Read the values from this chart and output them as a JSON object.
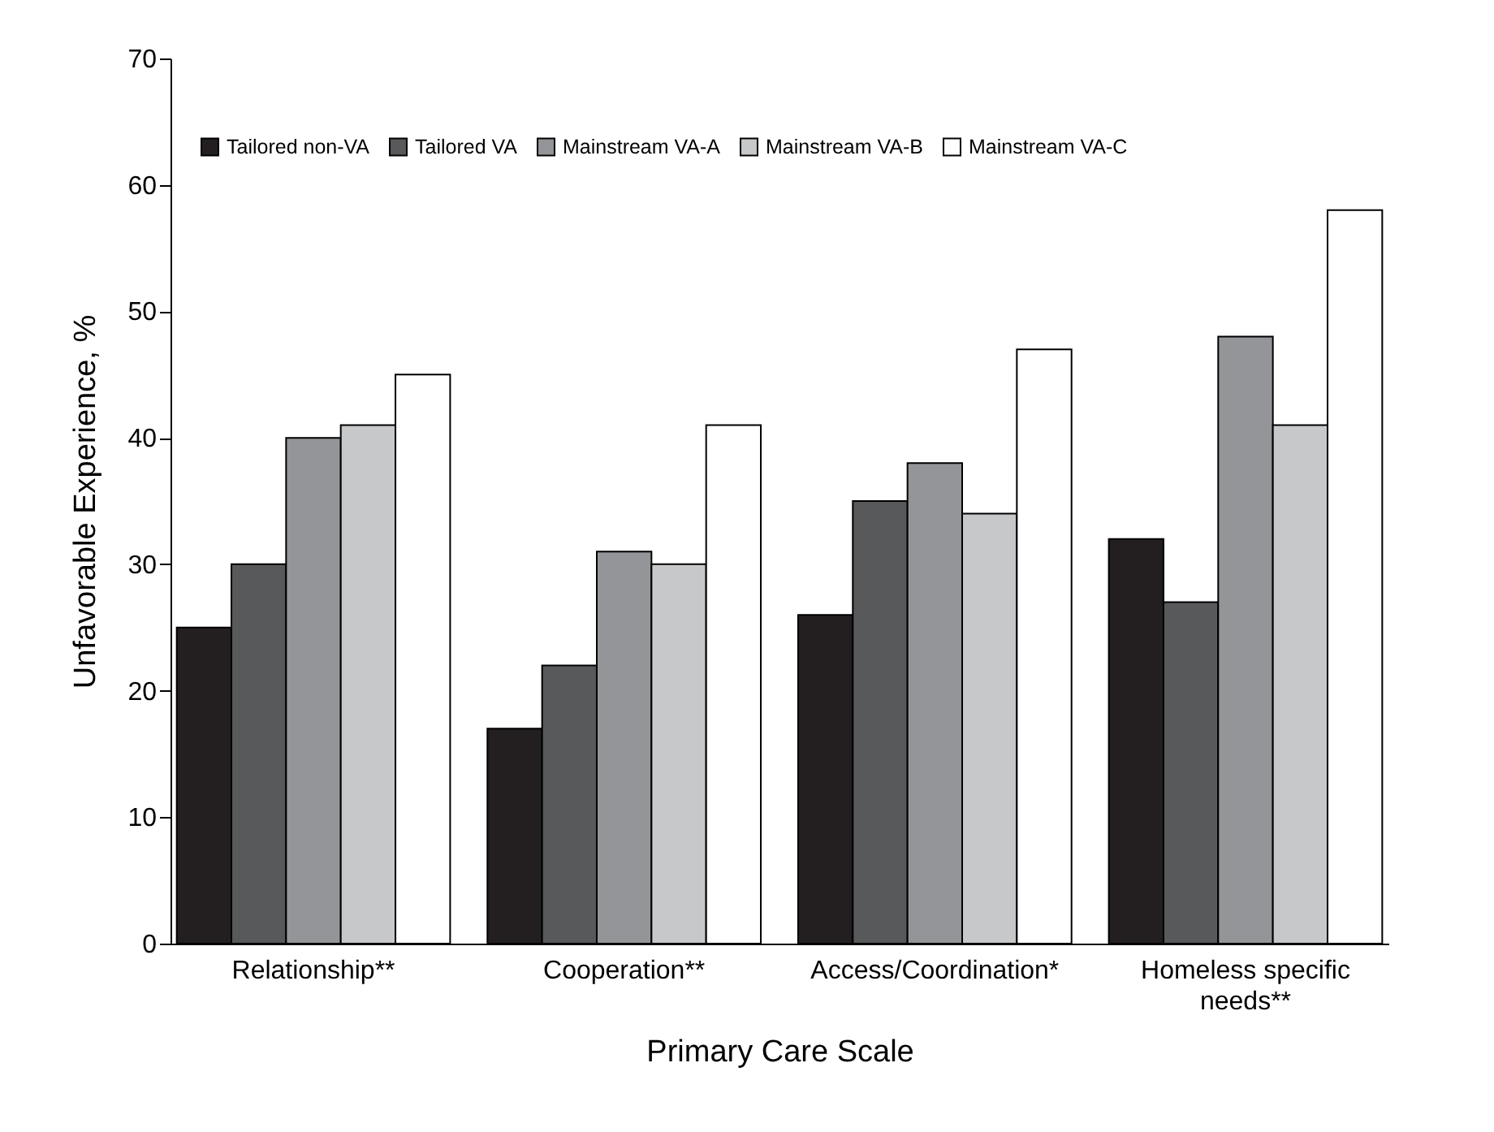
{
  "chart_data": {
    "type": "bar",
    "xlabel": "Primary Care Scale",
    "ylabel": "Unfavorable Experience, %",
    "categories": [
      "Relationship**",
      "Cooperation**",
      "Access/Coordination*",
      "Homeless specific needs**"
    ],
    "series": [
      {
        "name": "Tailored non-VA",
        "color": "#231f20",
        "values": [
          25,
          17,
          26,
          32
        ]
      },
      {
        "name": "Tailored VA",
        "color": "#58595b",
        "values": [
          30,
          22,
          35,
          27
        ]
      },
      {
        "name": "Mainstream VA-A",
        "color": "#939598",
        "values": [
          40,
          31,
          38,
          48
        ]
      },
      {
        "name": "Mainstream VA-B",
        "color": "#c7c8ca",
        "values": [
          41,
          30,
          34,
          41
        ]
      },
      {
        "name": "Mainstream VA-C",
        "color": "#ffffff",
        "values": [
          45,
          41,
          47,
          58
        ]
      }
    ],
    "ylim": [
      0,
      70
    ],
    "yticks": [
      0,
      10,
      20,
      30,
      40,
      50,
      60,
      70
    ],
    "legend": "top",
    "grid": false
  }
}
